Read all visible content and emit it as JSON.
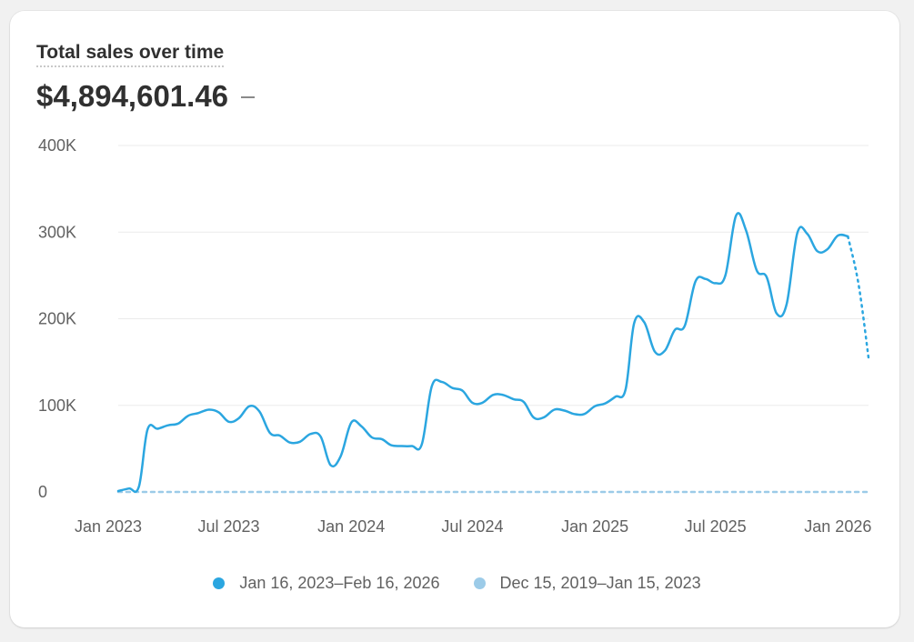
{
  "card": {
    "title": "Total sales over time",
    "total": "$4,894,601.46",
    "change": "–"
  },
  "colors": {
    "current": "#2ba6e0",
    "previous": "#9ccbe8",
    "grid": "#ebebeb"
  },
  "chart_data": {
    "type": "line",
    "title": "Total sales over time",
    "xlabel": "",
    "ylabel": "",
    "ylim": [
      0,
      400000
    ],
    "grid": true,
    "legend_position": "bottom",
    "y_ticks": [
      "0",
      "100K",
      "200K",
      "300K",
      "400K"
    ],
    "y_tick_values": [
      0,
      100000,
      200000,
      300000,
      400000
    ],
    "x_ticks": [
      "Jan 2023",
      "Jul 2023",
      "Jan 2024",
      "Jul 2024",
      "Jan 2025",
      "Jul 2025",
      "Jan 2026"
    ],
    "x_tick_dates": [
      "2023-01-01",
      "2023-07-01",
      "2024-01-01",
      "2024-07-01",
      "2025-01-01",
      "2025-07-01",
      "2026-01-01"
    ],
    "series": [
      {
        "name": "Jan 16, 2023–Feb 16, 2026",
        "style": "solid",
        "points": [
          [
            "2023-01-16",
            1000
          ],
          [
            "2023-02-01",
            4000
          ],
          [
            "2023-02-16",
            6000
          ],
          [
            "2023-03-01",
            72000
          ],
          [
            "2023-03-16",
            73000
          ],
          [
            "2023-04-01",
            77000
          ],
          [
            "2023-04-16",
            79000
          ],
          [
            "2023-05-01",
            88000
          ],
          [
            "2023-05-16",
            91000
          ],
          [
            "2023-06-01",
            95000
          ],
          [
            "2023-06-16",
            92000
          ],
          [
            "2023-07-01",
            81000
          ],
          [
            "2023-07-16",
            85000
          ],
          [
            "2023-08-01",
            99000
          ],
          [
            "2023-08-16",
            93000
          ],
          [
            "2023-09-01",
            68000
          ],
          [
            "2023-09-16",
            65000
          ],
          [
            "2023-10-01",
            57000
          ],
          [
            "2023-10-16",
            58000
          ],
          [
            "2023-11-01",
            67000
          ],
          [
            "2023-11-16",
            64000
          ],
          [
            "2023-12-01",
            31000
          ],
          [
            "2023-12-16",
            41000
          ],
          [
            "2024-01-01",
            80000
          ],
          [
            "2024-01-16",
            76000
          ],
          [
            "2024-02-01",
            63000
          ],
          [
            "2024-02-16",
            61000
          ],
          [
            "2024-03-01",
            54000
          ],
          [
            "2024-03-16",
            53000
          ],
          [
            "2024-04-01",
            53000
          ],
          [
            "2024-04-16",
            55000
          ],
          [
            "2024-05-01",
            122000
          ],
          [
            "2024-05-16",
            127000
          ],
          [
            "2024-06-01",
            120000
          ],
          [
            "2024-06-16",
            117000
          ],
          [
            "2024-07-01",
            103000
          ],
          [
            "2024-07-16",
            103000
          ],
          [
            "2024-08-01",
            112000
          ],
          [
            "2024-08-16",
            112000
          ],
          [
            "2024-09-01",
            107000
          ],
          [
            "2024-09-16",
            104000
          ],
          [
            "2024-10-01",
            86000
          ],
          [
            "2024-10-16",
            86000
          ],
          [
            "2024-11-01",
            95000
          ],
          [
            "2024-11-16",
            94000
          ],
          [
            "2024-12-01",
            90000
          ],
          [
            "2024-12-16",
            90000
          ],
          [
            "2025-01-01",
            99000
          ],
          [
            "2025-01-16",
            102000
          ],
          [
            "2025-02-01",
            110000
          ],
          [
            "2025-02-16",
            118000
          ],
          [
            "2025-03-01",
            195000
          ],
          [
            "2025-03-16",
            196000
          ],
          [
            "2025-04-01",
            162000
          ],
          [
            "2025-04-16",
            163000
          ],
          [
            "2025-05-01",
            187000
          ],
          [
            "2025-05-16",
            192000
          ],
          [
            "2025-06-01",
            243000
          ],
          [
            "2025-06-16",
            246000
          ],
          [
            "2025-07-01",
            241000
          ],
          [
            "2025-07-16",
            250000
          ],
          [
            "2025-08-01",
            319000
          ],
          [
            "2025-08-16",
            302000
          ],
          [
            "2025-09-01",
            256000
          ],
          [
            "2025-09-16",
            248000
          ],
          [
            "2025-10-01",
            206000
          ],
          [
            "2025-10-16",
            217000
          ],
          [
            "2025-11-01",
            299000
          ],
          [
            "2025-11-16",
            298000
          ],
          [
            "2025-12-01",
            278000
          ],
          [
            "2025-12-16",
            280000
          ],
          [
            "2026-01-01",
            296000
          ],
          [
            "2026-01-16",
            295000
          ]
        ],
        "incomplete_points": [
          [
            "2026-01-16",
            295000
          ],
          [
            "2026-02-01",
            240000
          ],
          [
            "2026-02-16",
            155000
          ]
        ]
      },
      {
        "name": "Dec 15, 2019–Jan 15, 2023",
        "style": "dashed",
        "points": [
          [
            "2023-01-16",
            0
          ],
          [
            "2023-07-01",
            0
          ],
          [
            "2024-01-01",
            0
          ],
          [
            "2024-07-01",
            0
          ],
          [
            "2025-01-01",
            0
          ],
          [
            "2025-07-01",
            0
          ],
          [
            "2026-01-01",
            0
          ],
          [
            "2026-02-16",
            0
          ]
        ]
      }
    ]
  }
}
